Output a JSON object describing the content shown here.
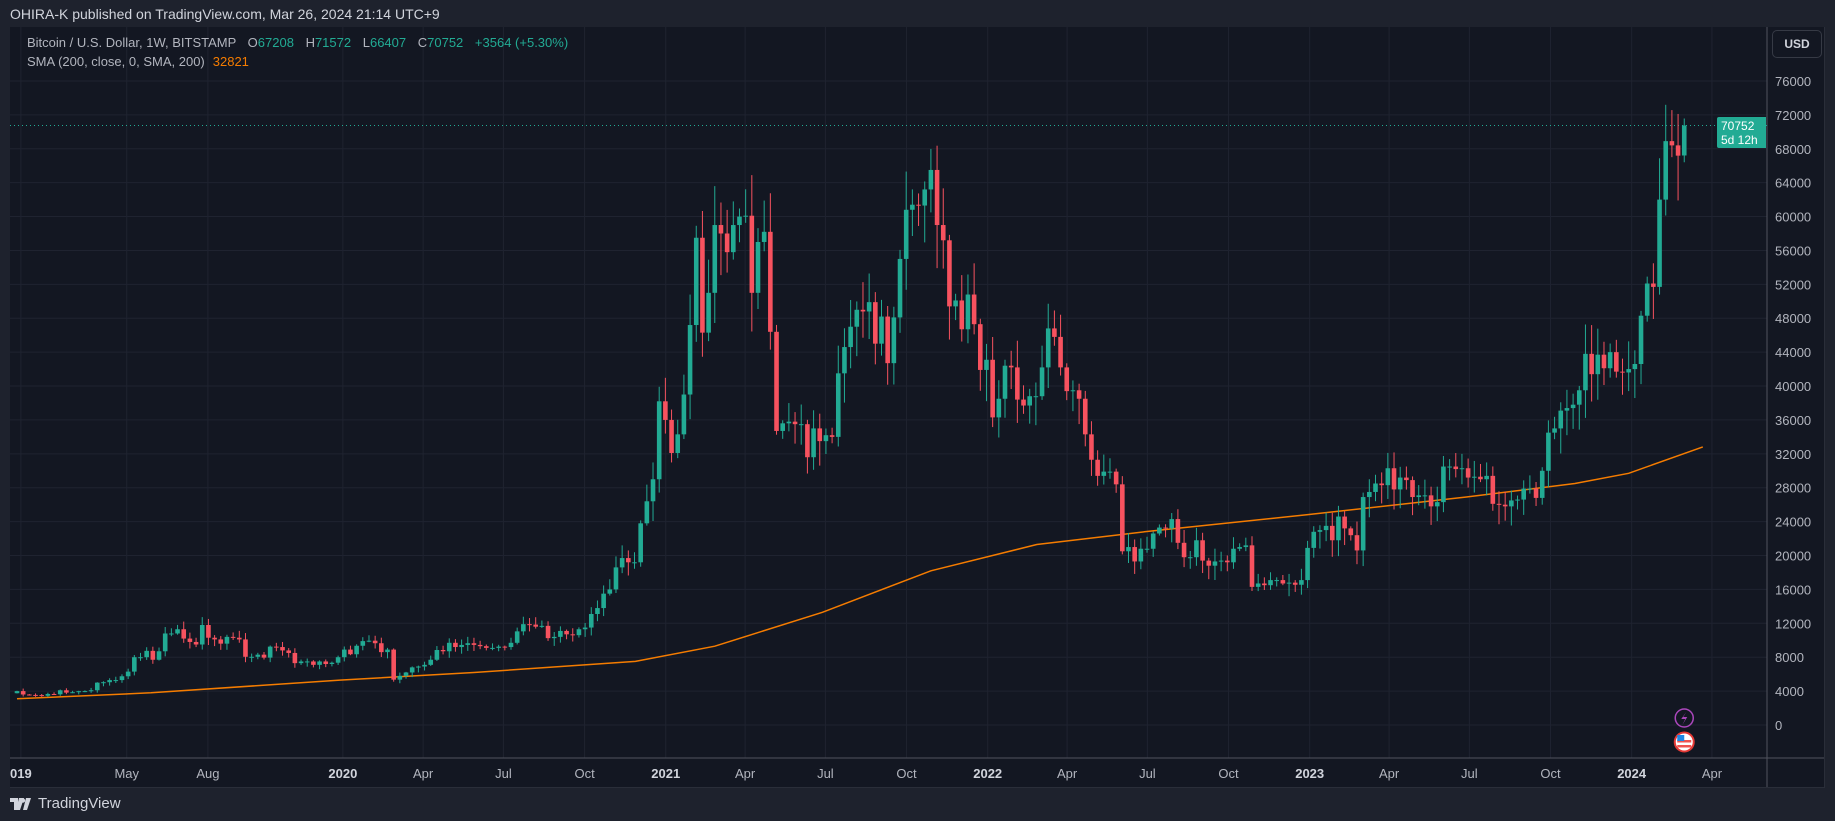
{
  "header": {
    "published": "OHIRA-K published on TradingView.com, Mar 26, 2024 21:14 UTC+9"
  },
  "legend": {
    "symbol": "Bitcoin / U.S. Dollar, 1W, BITSTAMP",
    "o_label": "O",
    "open": "67208",
    "h_label": "H",
    "high": "71572",
    "l_label": "L",
    "low": "66407",
    "c_label": "C",
    "close": "70752",
    "change": "+3564 (+5.30%)",
    "sma_label": "SMA (200, close, 0, SMA, 200)",
    "sma_value": "32821"
  },
  "currency_button": "USD",
  "last_price": {
    "price": "70752",
    "countdown": "5d 12h"
  },
  "brand": "TradingView",
  "colors": {
    "up": "#22ab94",
    "down": "#f7525f",
    "sma": "#f57c00",
    "grid": "#1f2330",
    "text": "#b2b5be"
  },
  "chart_data": {
    "type": "candlestick",
    "title": "Bitcoin / U.S. Dollar, 1W, BITSTAMP",
    "ylim": [
      0,
      79000
    ],
    "y_ticks": [
      "0",
      "4000",
      "8000",
      "12000",
      "16000",
      "20000",
      "24000",
      "28000",
      "32000",
      "36000",
      "40000",
      "44000",
      "48000",
      "52000",
      "56000",
      "60000",
      "64000",
      "68000",
      "72000",
      "76000"
    ],
    "x_ticks": [
      [
        "019",
        "2019-01-01"
      ],
      [
        "May",
        "2019-05-01"
      ],
      [
        "Aug",
        "2019-08-01"
      ],
      [
        "2020",
        "2020-01-01"
      ],
      [
        "Apr",
        "2020-04-01"
      ],
      [
        "Jul",
        "2020-07-01"
      ],
      [
        "Oct",
        "2020-10-01"
      ],
      [
        "2021",
        "2021-01-01"
      ],
      [
        "Apr",
        "2021-04-01"
      ],
      [
        "Jul",
        "2021-07-01"
      ],
      [
        "Oct",
        "2021-10-01"
      ],
      [
        "2022",
        "2022-01-01"
      ],
      [
        "Apr",
        "2022-04-01"
      ],
      [
        "Jul",
        "2022-07-01"
      ],
      [
        "Oct",
        "2022-10-01"
      ],
      [
        "2023",
        "2023-01-01"
      ],
      [
        "Apr",
        "2023-04-01"
      ],
      [
        "Jul",
        "2023-07-01"
      ],
      [
        "Oct",
        "2023-10-01"
      ],
      [
        "2024",
        "2024-01-01"
      ],
      [
        "Apr",
        "2024-04-01"
      ]
    ],
    "first_week": "2018-12-31",
    "first_open": 3750,
    "weekly_closes": [
      4000,
      3600,
      3550,
      3530,
      3450,
      3660,
      3620,
      4100,
      3820,
      3870,
      3990,
      4000,
      4100,
      5000,
      5050,
      5300,
      5300,
      5750,
      6300,
      8000,
      8000,
      8750,
      7700,
      8700,
      10800,
      10800,
      11300,
      10200,
      9800,
      9500,
      11800,
      10300,
      10100,
      9600,
      10400,
      10300,
      10100,
      8050,
      8050,
      8300,
      7950,
      9250,
      9200,
      8800,
      8500,
      7300,
      7500,
      7500,
      7100,
      7500,
      7200,
      7350,
      8000,
      8900,
      8350,
      9350,
      9900,
      9950,
      9650,
      8600,
      8900,
      5350,
      5800,
      6200,
      6800,
      6900,
      7100,
      7700,
      8850,
      8700,
      9700,
      9200,
      9450,
      9650,
      9450,
      9300,
      9100,
      9100,
      9250,
      9200,
      9700,
      11050,
      11900,
      11850,
      11600,
      11700,
      10250,
      10400,
      11100,
      10700,
      10600,
      11300,
      11500,
      13100,
      13800,
      15500,
      16000,
      18600,
      19700,
      19200,
      19200,
      23800,
      26400,
      29000,
      38200,
      36000,
      32100,
      34300,
      39000,
      47200,
      57500,
      46300,
      51000,
      59000,
      58000,
      55800,
      59000,
      60000,
      60100,
      51000,
      57000,
      58200,
      46400,
      34700,
      35600,
      35800,
      35500,
      35500,
      31600,
      35000,
      33500,
      34200,
      34000,
      41500,
      44600,
      47000,
      49000,
      48800,
      49900,
      45000,
      48200,
      42700,
      48100,
      55000,
      60800,
      61400,
      61300,
      63200,
      65500,
      59000,
      57200,
      49400,
      50100,
      46700,
      50800,
      47300,
      41900,
      43100,
      36300,
      38500,
      42400,
      42200,
      38400,
      37700,
      38800,
      38800,
      42200,
      46800,
      45800,
      42200,
      39400,
      39500,
      38500,
      34300,
      31300,
      29400,
      29900,
      29900,
      28400,
      20500,
      21000,
      19300,
      20800,
      20800,
      22600,
      23300,
      23200,
      24300,
      21500,
      19800,
      19800,
      21800,
      19400,
      18800,
      19300,
      19400,
      19200,
      20800,
      21000,
      21200,
      16300,
      16700,
      16500,
      17100,
      17100,
      16700,
      16800,
      16550,
      17100,
      20900,
      22800,
      23000,
      23500,
      21800,
      24600,
      23200,
      22400,
      20600,
      26900,
      27500,
      28500,
      28300,
      30300,
      27800,
      29200,
      28900,
      26900,
      27100,
      27100,
      25800,
      26300,
      30500,
      30500,
      30200,
      30300,
      29200,
      29300,
      29000,
      29400,
      26100,
      26000,
      25800,
      26500,
      26600,
      27900,
      27900,
      26800,
      30000,
      34500,
      35000,
      37100,
      37400,
      37800,
      39500,
      43800,
      41400,
      43700,
      42100,
      44000,
      41700,
      41600,
      42000,
      42600,
      48300,
      52100,
      51700,
      62000,
      68900,
      68400,
      67188
    ],
    "last_candle": {
      "open": 67208,
      "high": 71572,
      "low": 66407,
      "close": 70752
    },
    "sma_200": [
      [
        "2018-12-31",
        3100
      ],
      [
        "2019-06-01",
        3800
      ],
      [
        "2020-01-01",
        5300
      ],
      [
        "2020-06-01",
        6200
      ],
      [
        "2020-12-01",
        7500
      ],
      [
        "2021-03-01",
        9300
      ],
      [
        "2021-07-01",
        13300
      ],
      [
        "2021-11-01",
        18200
      ],
      [
        "2022-03-01",
        21300
      ],
      [
        "2022-07-01",
        22800
      ],
      [
        "2023-01-01",
        24800
      ],
      [
        "2023-07-01",
        26900
      ],
      [
        "2023-11-01",
        28500
      ],
      [
        "2024-01-01",
        29700
      ],
      [
        "2024-03-25",
        32821
      ]
    ]
  }
}
